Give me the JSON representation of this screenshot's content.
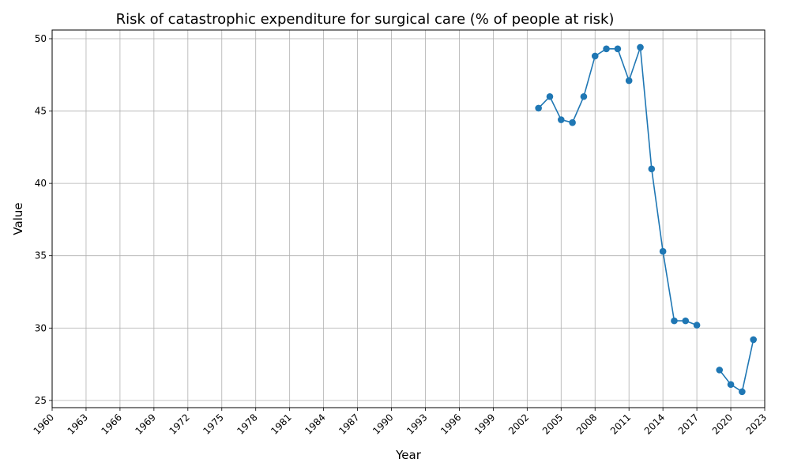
{
  "chart_data": {
    "type": "line",
    "title": "Risk of catastrophic expenditure for surgical care (% of people at risk)",
    "xlabel": "Year",
    "ylabel": "Value",
    "xlim": [
      1960,
      2023
    ],
    "ylim": [
      24.5,
      50.6
    ],
    "x_ticks": [
      1960,
      1963,
      1966,
      1969,
      1972,
      1975,
      1978,
      1981,
      1984,
      1987,
      1990,
      1993,
      1996,
      1999,
      2002,
      2005,
      2008,
      2011,
      2014,
      2017,
      2020,
      2023
    ],
    "y_ticks": [
      25,
      30,
      35,
      40,
      45,
      50
    ],
    "grid": true,
    "series": [
      {
        "color": "#1f77b4",
        "marker": "circle",
        "segments": [
          [
            [
              2003,
              45.2
            ],
            [
              2004,
              46.0
            ],
            [
              2005,
              44.4
            ],
            [
              2006,
              44.2
            ],
            [
              2007,
              46.0
            ],
            [
              2008,
              48.8
            ],
            [
              2009,
              49.3
            ],
            [
              2010,
              49.3
            ],
            [
              2011,
              47.1
            ],
            [
              2012,
              49.4
            ],
            [
              2013,
              41.0
            ],
            [
              2014,
              35.3
            ],
            [
              2015,
              30.5
            ],
            [
              2016,
              30.5
            ],
            [
              2017,
              30.2
            ]
          ],
          [
            [
              2019,
              27.1
            ],
            [
              2020,
              26.1
            ],
            [
              2021,
              25.6
            ],
            [
              2022,
              29.2
            ]
          ]
        ]
      }
    ]
  }
}
